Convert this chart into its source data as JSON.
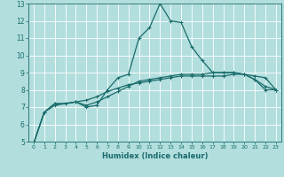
{
  "title": "",
  "xlabel": "Humidex (Indice chaleur)",
  "bg_color": "#b2dede",
  "grid_color": "#ffffff",
  "line_color": "#1a6b6b",
  "xlim": [
    -0.5,
    23.5
  ],
  "ylim": [
    5,
    13
  ],
  "xticks": [
    0,
    1,
    2,
    3,
    4,
    5,
    6,
    7,
    8,
    9,
    10,
    11,
    12,
    13,
    14,
    15,
    16,
    17,
    18,
    19,
    20,
    21,
    22,
    23
  ],
  "yticks": [
    5,
    6,
    7,
    8,
    9,
    10,
    11,
    12,
    13
  ],
  "series": [
    [
      4.9,
      6.7,
      7.2,
      7.2,
      7.3,
      7.0,
      7.1,
      8.0,
      8.7,
      8.9,
      11.0,
      11.6,
      13.0,
      12.0,
      11.9,
      10.5,
      9.7,
      9.0,
      9.0,
      9.0,
      8.9,
      8.6,
      8.0,
      8.0
    ],
    [
      4.9,
      6.7,
      7.2,
      7.2,
      7.3,
      7.4,
      7.6,
      7.9,
      8.1,
      8.3,
      8.4,
      8.5,
      8.6,
      8.7,
      8.8,
      8.8,
      8.8,
      8.8,
      8.8,
      8.9,
      8.9,
      8.8,
      8.7,
      8.0
    ],
    [
      4.9,
      6.7,
      7.1,
      7.2,
      7.3,
      7.1,
      7.3,
      7.6,
      7.9,
      8.2,
      8.5,
      8.6,
      8.7,
      8.8,
      8.9,
      8.9,
      8.9,
      9.0,
      9.0,
      9.0,
      8.9,
      8.6,
      8.2,
      8.0
    ]
  ]
}
